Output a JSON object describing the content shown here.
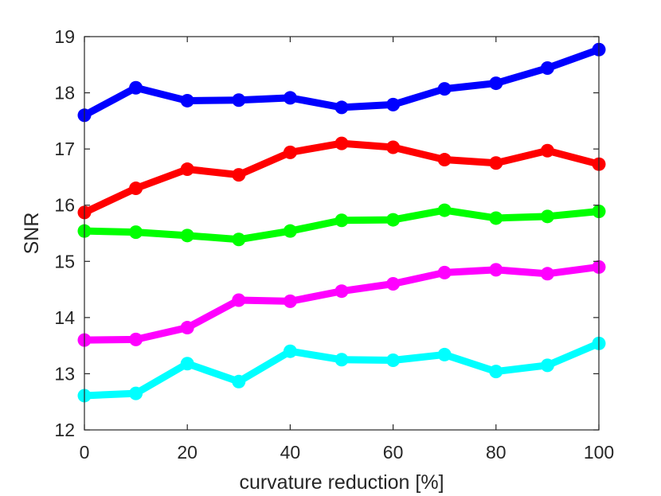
{
  "chart_data": {
    "type": "line",
    "title": "",
    "xlabel": "curvature reduction [%]",
    "ylabel": "SNR",
    "xlim": [
      0,
      100
    ],
    "ylim": [
      12,
      19
    ],
    "grid": false,
    "legend": "none",
    "x": [
      0,
      10,
      20,
      30,
      40,
      50,
      60,
      70,
      80,
      90,
      100
    ],
    "xticks": [
      "0",
      "20",
      "40",
      "60",
      "80",
      "100"
    ],
    "yticks": [
      "12",
      "13",
      "14",
      "15",
      "16",
      "17",
      "18",
      "19"
    ],
    "series": [
      {
        "name": "blue",
        "color": "#0000ff",
        "values": [
          17.6,
          18.09,
          17.86,
          17.87,
          17.91,
          17.74,
          17.79,
          18.07,
          18.17,
          18.44,
          18.77
        ]
      },
      {
        "name": "red",
        "color": "#ff0000",
        "values": [
          15.87,
          16.3,
          16.64,
          16.54,
          16.94,
          17.1,
          17.03,
          16.81,
          16.75,
          16.97,
          16.73
        ]
      },
      {
        "name": "green",
        "color": "#00ff00",
        "values": [
          15.54,
          15.52,
          15.46,
          15.39,
          15.54,
          15.73,
          15.74,
          15.91,
          15.77,
          15.8,
          15.89
        ]
      },
      {
        "name": "magenta",
        "color": "#ff00ff",
        "values": [
          13.6,
          13.61,
          13.82,
          14.31,
          14.29,
          14.47,
          14.6,
          14.8,
          14.85,
          14.78,
          14.9
        ]
      },
      {
        "name": "cyan",
        "color": "#00ffff",
        "values": [
          12.61,
          12.65,
          13.18,
          12.86,
          13.4,
          13.25,
          13.24,
          13.34,
          13.04,
          13.15,
          13.54
        ]
      }
    ]
  }
}
